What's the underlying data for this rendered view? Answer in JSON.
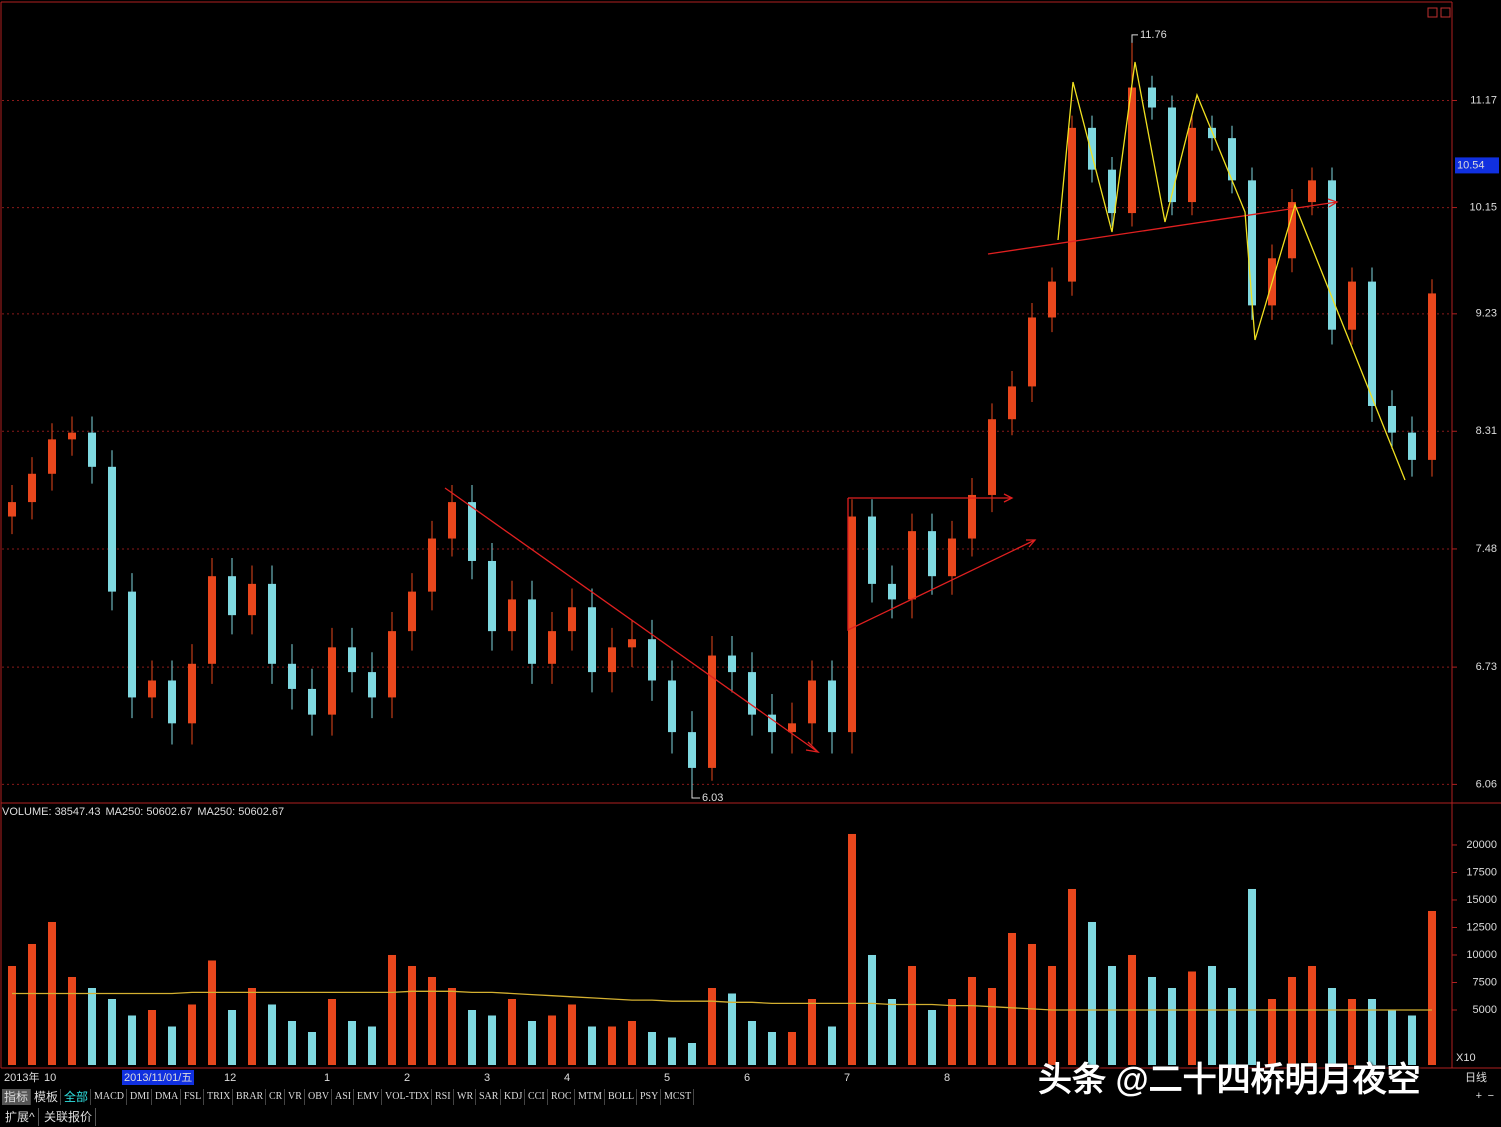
{
  "chart_data": [
    {
      "type": "candlestick",
      "log_scale": true,
      "grid": true,
      "up_color": "#e8471d",
      "down_color": "#7fd8e0",
      "categories": [
        "2013年",
        null,
        "10",
        null,
        null,
        null,
        "2013/11/01/五",
        null,
        null,
        null,
        null,
        "12",
        null,
        null,
        null,
        null,
        "1",
        null,
        null,
        null,
        "2",
        null,
        null,
        null,
        "3",
        null,
        null,
        null,
        "4",
        null,
        null,
        null,
        null,
        "5",
        null,
        null,
        null,
        "6",
        null,
        null,
        null,
        null,
        "7",
        null,
        null,
        null,
        null,
        "8",
        null,
        null,
        null,
        null,
        null,
        null,
        null,
        null,
        null,
        null,
        null,
        null,
        null,
        null,
        null,
        null,
        null,
        null,
        null,
        null,
        null,
        null,
        null,
        null
      ],
      "open": [
        7.7,
        7.8,
        8.0,
        8.25,
        8.3,
        8.05,
        7.2,
        6.55,
        6.65,
        6.4,
        6.75,
        7.3,
        7.05,
        7.25,
        6.75,
        6.6,
        6.45,
        6.85,
        6.7,
        6.55,
        6.95,
        7.2,
        7.55,
        7.8,
        7.4,
        6.95,
        7.15,
        6.75,
        6.95,
        7.1,
        6.7,
        6.85,
        6.9,
        6.65,
        6.35,
        6.15,
        6.8,
        6.7,
        6.45,
        6.35,
        6.4,
        6.65,
        6.35,
        7.7,
        7.25,
        7.15,
        7.6,
        7.3,
        7.55,
        7.85,
        8.4,
        8.65,
        9.2,
        9.5,
        10.9,
        10.5,
        10.1,
        11.3,
        11.1,
        10.2,
        10.9,
        10.8,
        10.4,
        9.3,
        9.7,
        10.2,
        10.4,
        9.1,
        9.5,
        8.5,
        8.3,
        8.1
      ],
      "high": [
        7.92,
        8.12,
        8.37,
        8.42,
        8.42,
        8.17,
        7.32,
        6.77,
        6.77,
        6.87,
        7.42,
        7.42,
        7.37,
        7.37,
        6.87,
        6.72,
        6.97,
        6.97,
        6.82,
        7.07,
        7.32,
        7.67,
        7.92,
        7.92,
        7.52,
        7.27,
        7.27,
        7.07,
        7.22,
        7.22,
        6.97,
        7.02,
        7.02,
        6.77,
        6.47,
        6.92,
        6.92,
        6.82,
        6.57,
        6.52,
        6.77,
        6.77,
        7.82,
        7.82,
        7.37,
        7.72,
        7.72,
        7.67,
        7.97,
        8.52,
        8.77,
        9.32,
        9.62,
        11.02,
        11.02,
        10.62,
        11.76,
        11.42,
        11.22,
        11.02,
        11.02,
        10.92,
        10.52,
        9.82,
        10.32,
        10.52,
        10.52,
        9.62,
        9.62,
        8.62,
        8.42,
        9.52
      ],
      "low": [
        7.58,
        7.68,
        7.88,
        8.13,
        7.93,
        7.08,
        6.43,
        6.43,
        6.28,
        6.28,
        6.63,
        6.93,
        6.93,
        6.63,
        6.48,
        6.33,
        6.33,
        6.58,
        6.43,
        6.43,
        6.83,
        7.08,
        7.43,
        7.28,
        6.83,
        6.83,
        6.63,
        6.63,
        6.83,
        6.58,
        6.58,
        6.73,
        6.53,
        6.23,
        6.03,
        6.08,
        6.58,
        6.33,
        6.23,
        6.23,
        6.28,
        6.23,
        6.23,
        7.13,
        7.03,
        7.03,
        7.18,
        7.18,
        7.43,
        7.73,
        8.28,
        8.53,
        9.08,
        9.38,
        10.38,
        9.98,
        9.98,
        10.98,
        10.08,
        10.08,
        10.68,
        10.28,
        9.18,
        9.18,
        9.58,
        10.08,
        8.98,
        8.98,
        8.38,
        8.18,
        7.98,
        7.98
      ],
      "close": [
        7.8,
        8.0,
        8.25,
        8.3,
        8.05,
        7.2,
        6.55,
        6.65,
        6.4,
        6.75,
        7.3,
        7.05,
        7.25,
        6.75,
        6.6,
        6.45,
        6.85,
        6.7,
        6.55,
        6.95,
        7.2,
        7.55,
        7.8,
        7.4,
        6.95,
        7.15,
        6.75,
        6.95,
        7.1,
        6.7,
        6.85,
        6.9,
        6.65,
        6.35,
        6.15,
        6.8,
        6.7,
        6.45,
        6.35,
        6.4,
        6.65,
        6.35,
        7.7,
        7.25,
        7.15,
        7.6,
        7.3,
        7.55,
        7.85,
        8.4,
        8.65,
        9.2,
        9.5,
        10.9,
        10.5,
        10.1,
        11.3,
        11.1,
        10.2,
        10.9,
        10.8,
        10.4,
        9.3,
        9.7,
        10.2,
        10.4,
        9.1,
        9.5,
        8.5,
        8.3,
        8.1,
        9.4
      ],
      "ylim": [
        5.96,
        12.22
      ],
      "yticks": [
        6.06,
        6.73,
        7.48,
        8.31,
        9.23,
        10.15,
        11.17
      ],
      "cursor_value": 10.54
    },
    {
      "type": "bar",
      "legend": [
        "VOLUME: 38547.43",
        "MA250: 50602.67",
        "MA250: 50602.67"
      ],
      "legend_colors": [
        "#ffffff",
        "#ffffff",
        "#e0a020"
      ],
      "values": [
        9000,
        11000,
        13000,
        8000,
        7000,
        6000,
        4500,
        5000,
        3500,
        5500,
        9500,
        5000,
        7000,
        5500,
        4000,
        3000,
        6000,
        4000,
        3500,
        10000,
        9000,
        8000,
        7000,
        5000,
        4500,
        6000,
        4000,
        4500,
        5500,
        3500,
        3500,
        4000,
        3000,
        2500,
        2000,
        7000,
        6500,
        4000,
        3000,
        3000,
        6000,
        3500,
        21000,
        10000,
        6000,
        9000,
        5000,
        6000,
        8000,
        7000,
        12000,
        11000,
        9000,
        16000,
        13000,
        9000,
        10000,
        8000,
        7000,
        8500,
        9000,
        7000,
        16000,
        6000,
        8000,
        9000,
        7000,
        6000,
        6000,
        5000,
        4500,
        14000
      ],
      "ma_color": "#d4b030",
      "ma_values": [
        6500,
        6500,
        6500,
        6500,
        6500,
        6500,
        6500,
        6500,
        6500,
        6600,
        6600,
        6600,
        6600,
        6600,
        6600,
        6600,
        6600,
        6600,
        6600,
        6600,
        6700,
        6700,
        6700,
        6600,
        6600,
        6500,
        6400,
        6300,
        6200,
        6100,
        6000,
        5900,
        5900,
        5800,
        5800,
        5800,
        5700,
        5700,
        5600,
        5600,
        5600,
        5600,
        5600,
        5600,
        5500,
        5500,
        5500,
        5400,
        5400,
        5300,
        5200,
        5100,
        5000,
        5000,
        5000,
        5000,
        5000,
        5000,
        5000,
        5000,
        5000,
        5000,
        5000,
        5000,
        5000,
        5000,
        5000,
        5000,
        5000,
        5000,
        5000,
        5000
      ],
      "ylim": [
        0,
        22270
      ],
      "yticks": [
        5000,
        7500,
        10000,
        12500,
        15000,
        17500,
        20000
      ],
      "zoom": "X10"
    }
  ],
  "period": "日线",
  "toolbar": {
    "tabs": [
      "指标",
      "模板",
      "全部",
      "MACD",
      "DMI",
      "DMA",
      "FSL",
      "TRIX",
      "BRAR",
      "CR",
      "VR",
      "OBV",
      "ASI",
      "EMV",
      "VOL-TDX",
      "RSI",
      "WR",
      "SAR",
      "KDJ",
      "CCI",
      "ROC",
      "MTM",
      "BOLL",
      "PSY",
      "MCST"
    ],
    "bottom": [
      "扩展^",
      "关联报价"
    ]
  },
  "watermark": "头条 @二十四桥明月夜空"
}
